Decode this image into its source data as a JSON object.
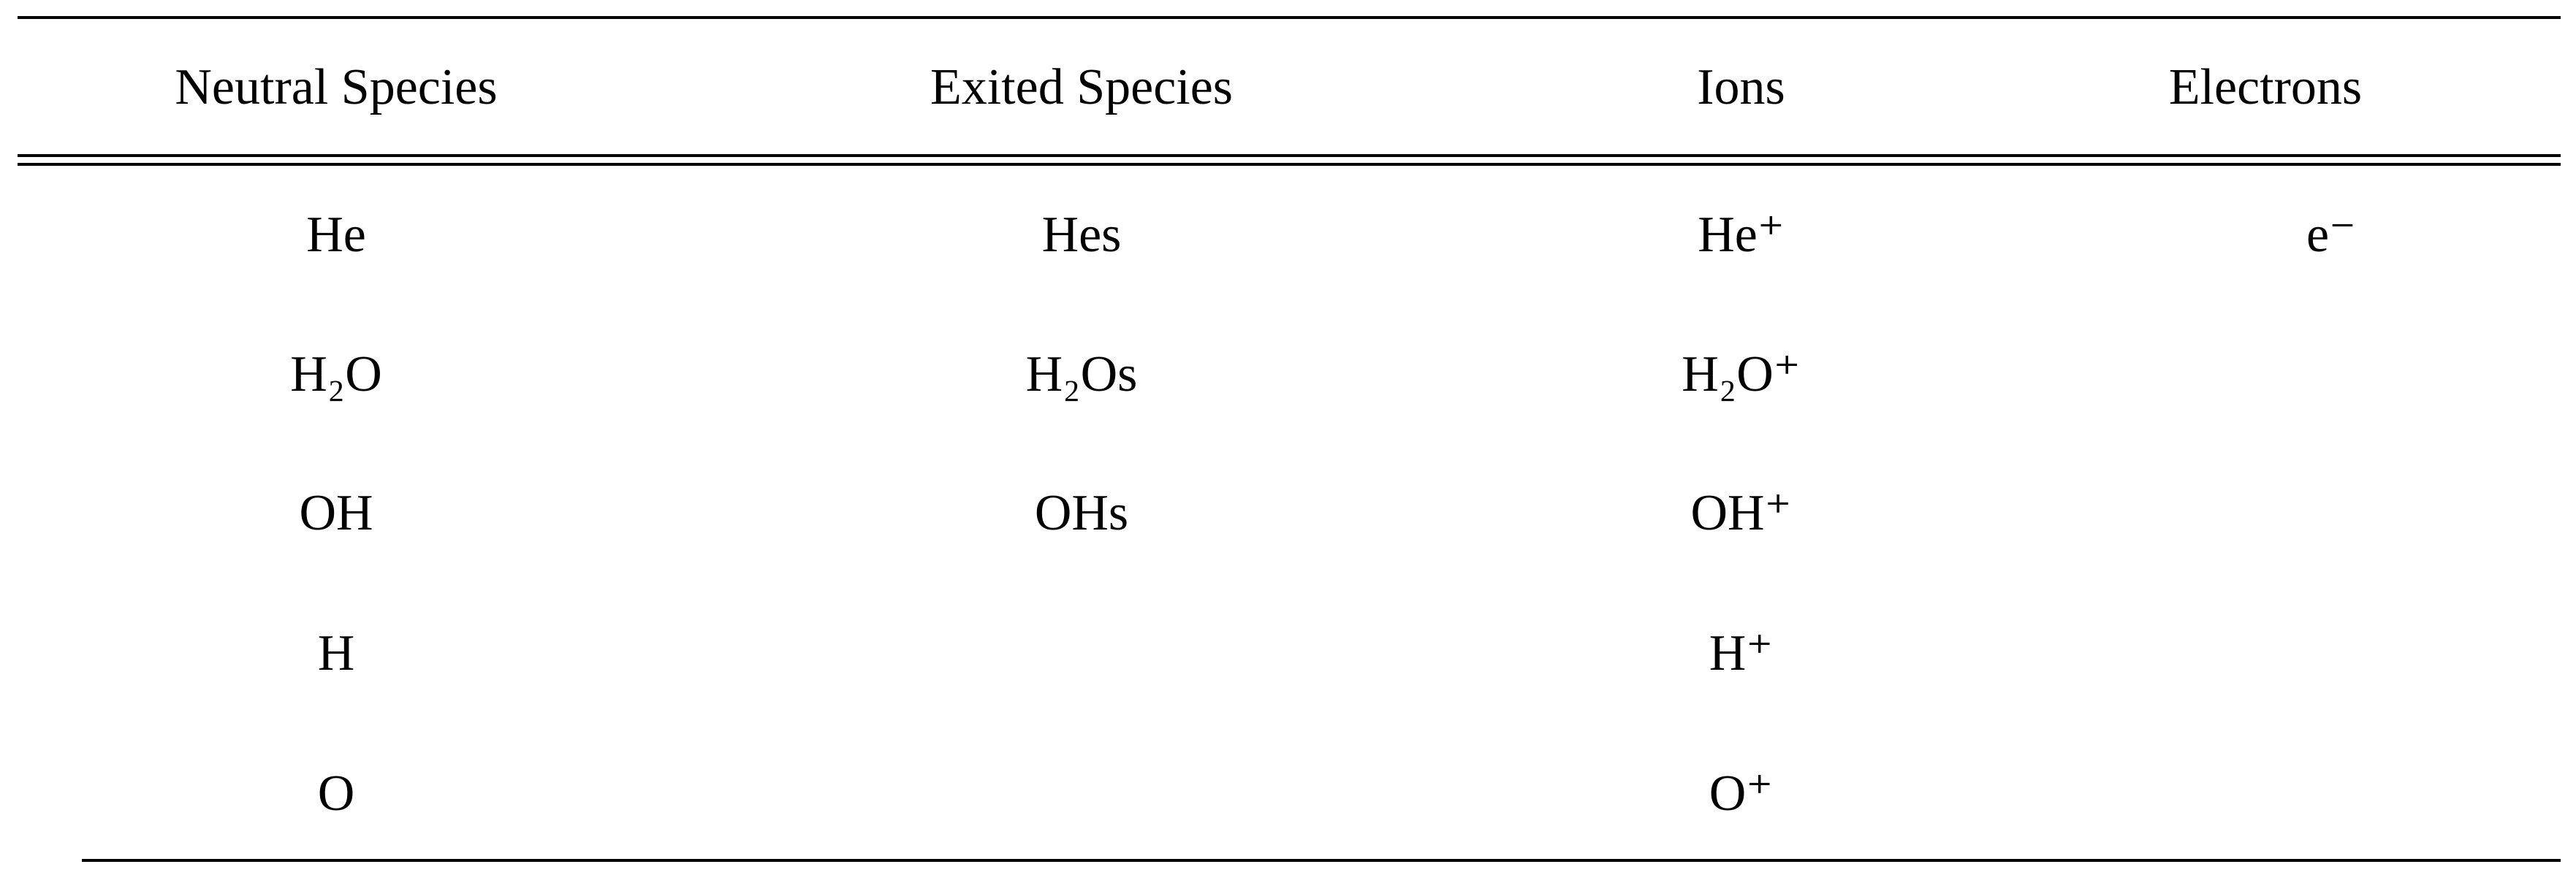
{
  "table": {
    "headers": [
      "Neutral Species",
      "Exited Species",
      "Ions",
      "Electrons"
    ],
    "rows": [
      [
        "He",
        "Hes",
        "He⁺",
        "e⁻"
      ],
      [
        "H₂O",
        "H₂Os",
        "H₂O⁺",
        ""
      ],
      [
        "OH",
        "OHs",
        "OH⁺",
        ""
      ],
      [
        "H",
        "",
        "H⁺",
        ""
      ],
      [
        "O",
        "",
        "O⁺",
        ""
      ]
    ]
  }
}
